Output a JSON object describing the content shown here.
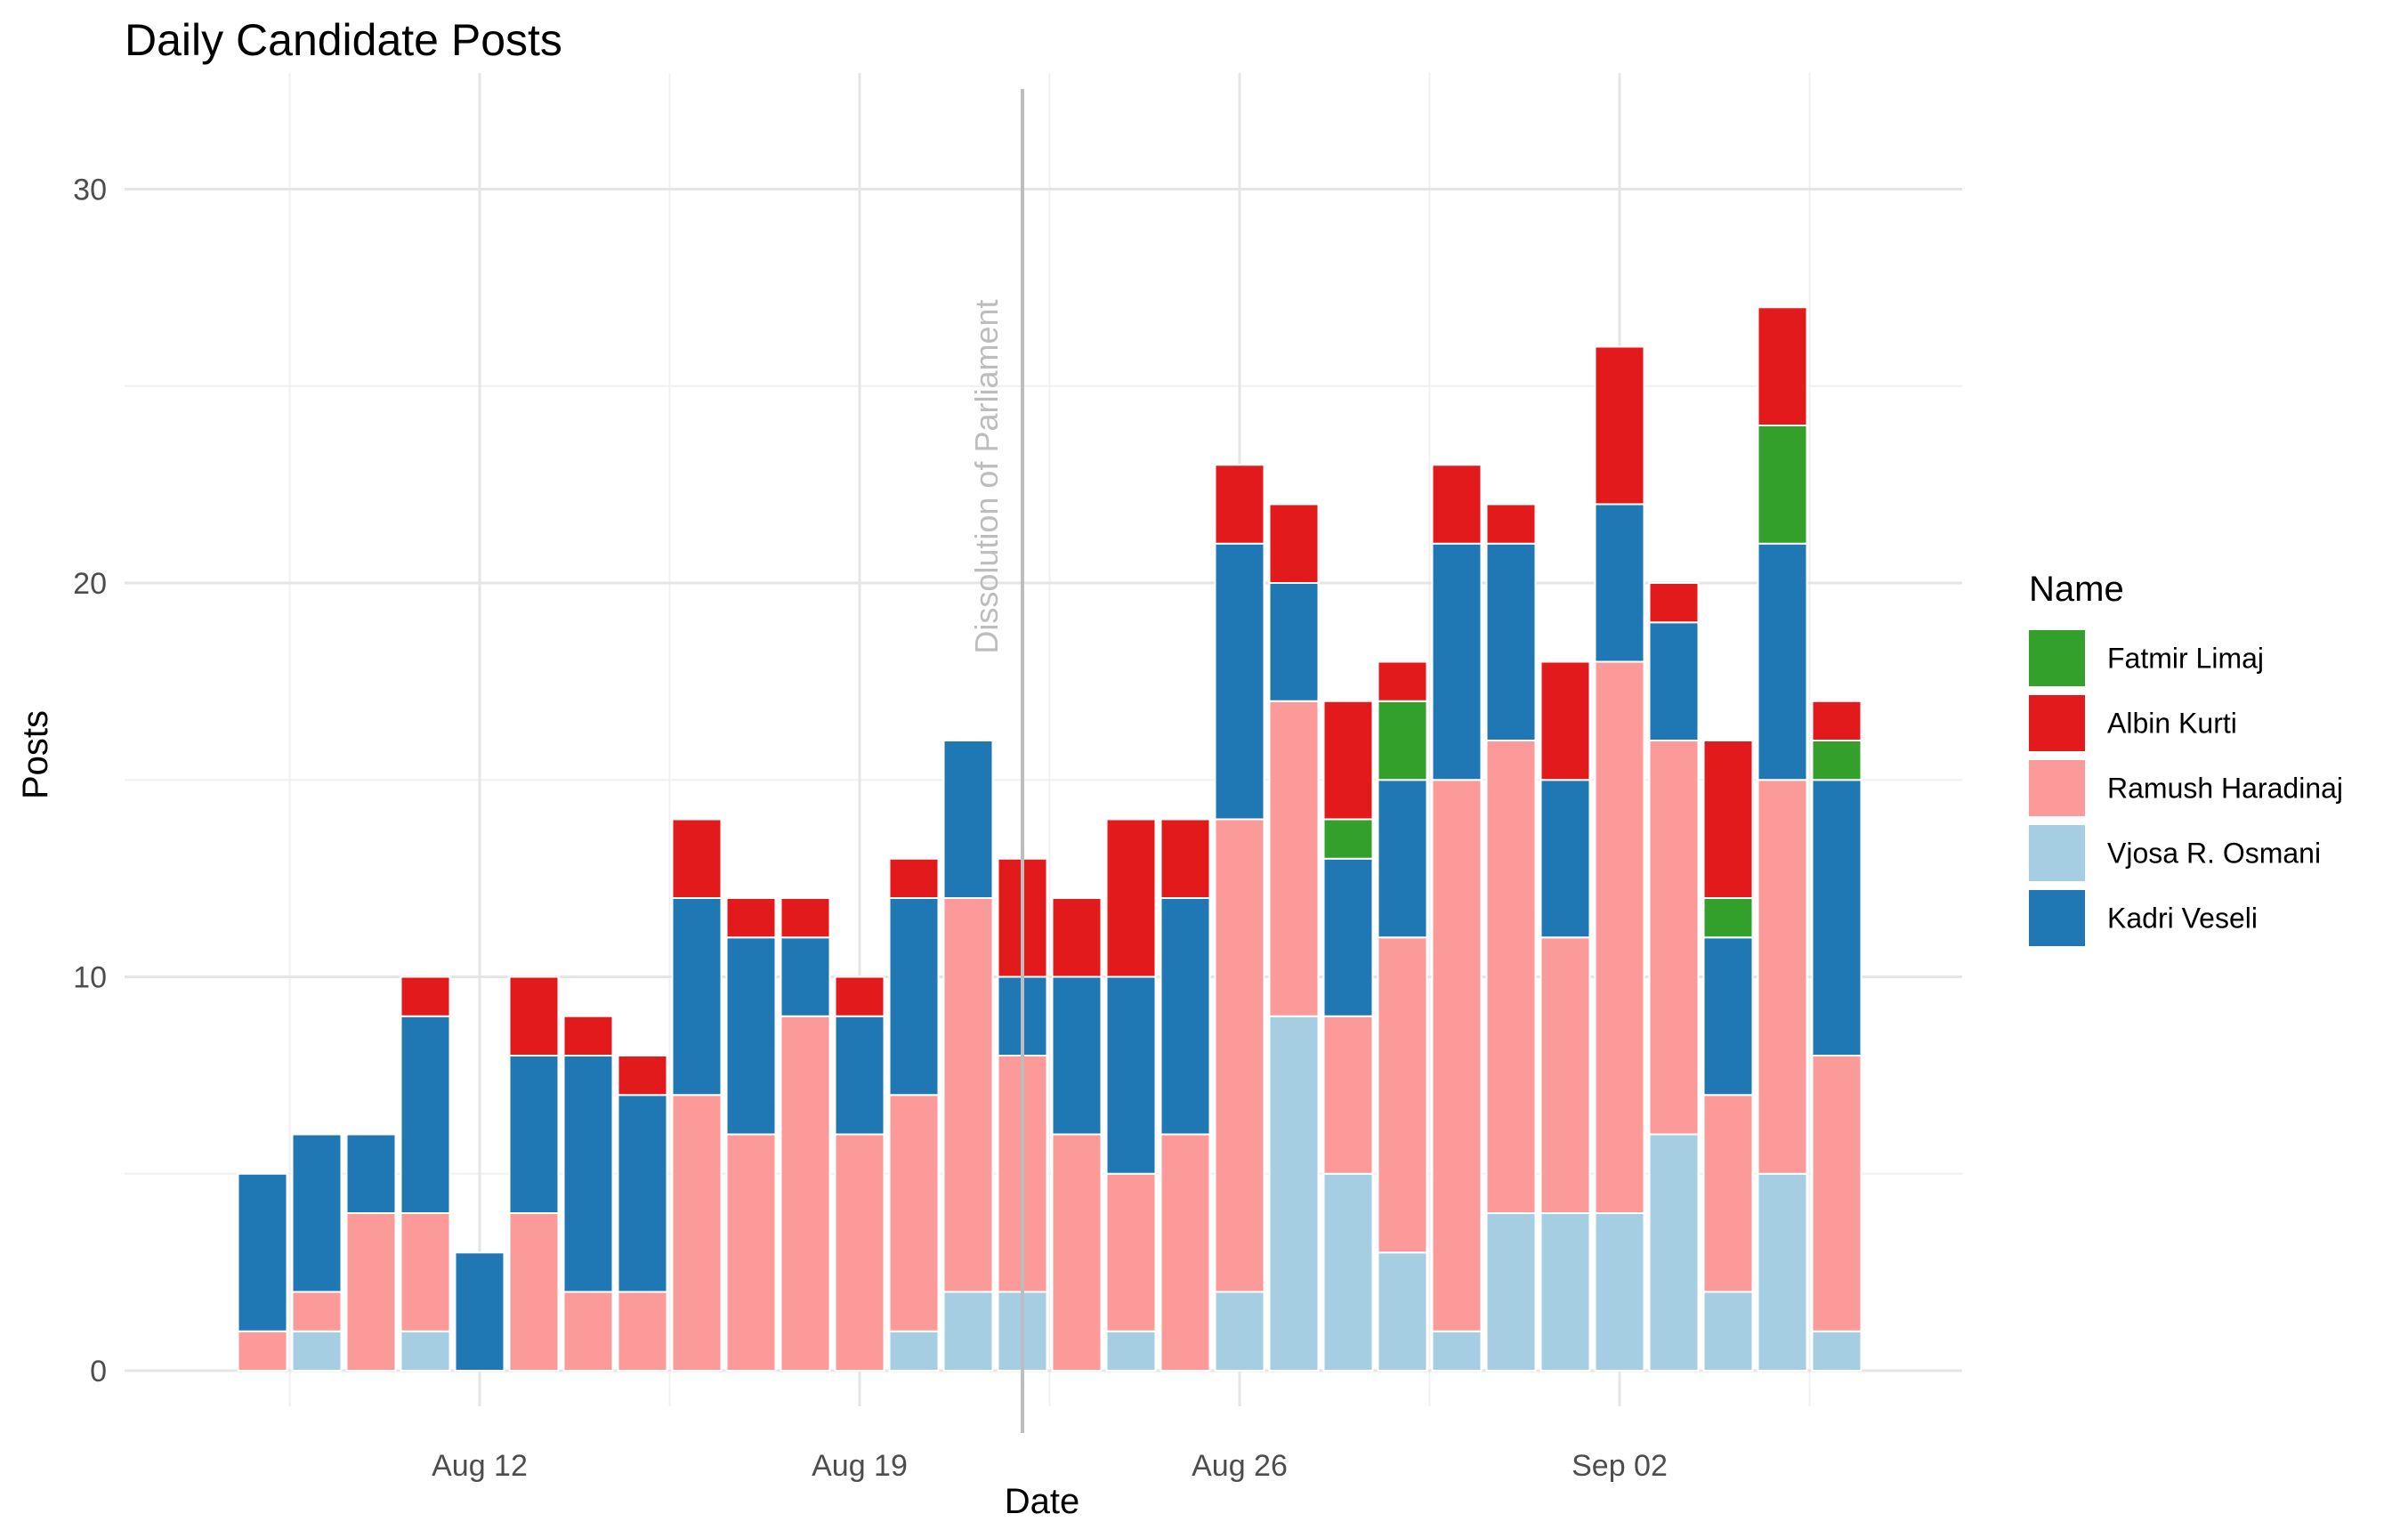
{
  "chart_data": {
    "type": "bar",
    "stacked": true,
    "title": "Daily Candidate Posts",
    "xlabel": "Date",
    "ylabel": "Posts",
    "ylim": [
      0,
      32
    ],
    "y_ticks": [
      0,
      10,
      20,
      30
    ],
    "x_ticks": [
      {
        "label": "Aug 12",
        "date": "2019-08-12"
      },
      {
        "label": "Aug 19",
        "date": "2019-08-19"
      },
      {
        "label": "Aug 26",
        "date": "2019-08-26"
      },
      {
        "label": "Sep 02",
        "date": "2019-09-02"
      }
    ],
    "categories": [
      "2019-08-08",
      "2019-08-09",
      "2019-08-10",
      "2019-08-11",
      "2019-08-12",
      "2019-08-13",
      "2019-08-14",
      "2019-08-15",
      "2019-08-16",
      "2019-08-17",
      "2019-08-18",
      "2019-08-19",
      "2019-08-20",
      "2019-08-21",
      "2019-08-22",
      "2019-08-23",
      "2019-08-24",
      "2019-08-25",
      "2019-08-26",
      "2019-08-27",
      "2019-08-28",
      "2019-08-29",
      "2019-08-30",
      "2019-08-31",
      "2019-09-01",
      "2019-09-02",
      "2019-09-03",
      "2019-09-04",
      "2019-09-05",
      "2019-09-06"
    ],
    "stack_order_bottom_to_top": [
      "Vjosa R. Osmani",
      "Ramush Haradinaj",
      "Kadri Veseli",
      "Fatmir Limaj",
      "Albin Kurti"
    ],
    "series": [
      {
        "name": "Vjosa R. Osmani",
        "color": "#a6cee3",
        "values": [
          0,
          1,
          0,
          1,
          0,
          0,
          0,
          0,
          0,
          0,
          0,
          0,
          1,
          2,
          2,
          0,
          1,
          0,
          2,
          9,
          5,
          3,
          1,
          4,
          4,
          4,
          6,
          2,
          5,
          1
        ]
      },
      {
        "name": "Ramush Haradinaj",
        "color": "#fb9a99",
        "values": [
          1,
          1,
          4,
          3,
          0,
          4,
          2,
          2,
          7,
          6,
          9,
          6,
          6,
          10,
          6,
          6,
          4,
          6,
          12,
          8,
          4,
          8,
          14,
          12,
          7,
          14,
          10,
          5,
          10,
          7
        ]
      },
      {
        "name": "Kadri Veseli",
        "color": "#1f78b4",
        "values": [
          4,
          4,
          2,
          5,
          3,
          4,
          6,
          5,
          5,
          5,
          2,
          3,
          5,
          4,
          2,
          4,
          5,
          6,
          7,
          3,
          4,
          4,
          6,
          5,
          4,
          4,
          3,
          4,
          6,
          7
        ]
      },
      {
        "name": "Fatmir Limaj",
        "color": "#33a02c",
        "values": [
          0,
          0,
          0,
          0,
          0,
          0,
          0,
          0,
          0,
          0,
          0,
          0,
          0,
          0,
          0,
          0,
          0,
          0,
          0,
          0,
          1,
          2,
          0,
          0,
          0,
          0,
          0,
          1,
          3,
          1
        ]
      },
      {
        "name": "Albin Kurti",
        "color": "#e31a1c",
        "values": [
          0,
          0,
          0,
          1,
          0,
          2,
          1,
          1,
          2,
          1,
          1,
          1,
          1,
          0,
          3,
          2,
          4,
          2,
          2,
          2,
          3,
          1,
          2,
          1,
          3,
          4,
          1,
          4,
          3,
          1
        ]
      }
    ],
    "annotations": [
      {
        "type": "vline",
        "date": "2019-08-22",
        "text": "Dissolution of Parliament",
        "color": "#bdbdbd"
      }
    ],
    "grid": true,
    "legend": {
      "title": "Name",
      "position": "right",
      "items": [
        {
          "label": "Fatmir Limaj",
          "color": "#33a02c"
        },
        {
          "label": "Albin Kurti",
          "color": "#e31a1c"
        },
        {
          "label": "Ramush Haradinaj",
          "color": "#fb9a99"
        },
        {
          "label": "Vjosa R. Osmani",
          "color": "#a6cee3"
        },
        {
          "label": "Kadri Veseli",
          "color": "#1f78b4"
        }
      ]
    }
  }
}
